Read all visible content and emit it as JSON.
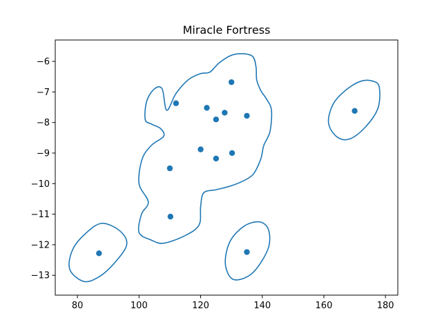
{
  "chart_data": {
    "type": "scatter",
    "title": "Miracle Fortress",
    "xlabel": "",
    "ylabel": "",
    "xlim": [
      72.8,
      184.0
    ],
    "ylim": [
      -13.65,
      -5.3
    ],
    "x_ticks": [
      80,
      100,
      120,
      140,
      160,
      180
    ],
    "y_ticks": [
      -6,
      -7,
      -8,
      -9,
      -10,
      -11,
      -12,
      -13
    ],
    "x_tick_labels": [
      "80",
      "100",
      "120",
      "140",
      "160",
      "180"
    ],
    "y_tick_labels": [
      "−6",
      "−7",
      "−8",
      "−9",
      "−10",
      "−11",
      "−12",
      "−13"
    ],
    "grid": false,
    "colors": {
      "series": "#1f77b4",
      "axis": "#000000"
    },
    "points": [
      {
        "x": 87,
        "y": -12.28
      },
      {
        "x": 110,
        "y": -9.5
      },
      {
        "x": 110.2,
        "y": -11.08
      },
      {
        "x": 112,
        "y": -7.37
      },
      {
        "x": 120,
        "y": -8.88
      },
      {
        "x": 122,
        "y": -7.52
      },
      {
        "x": 125,
        "y": -7.9
      },
      {
        "x": 125,
        "y": -9.18
      },
      {
        "x": 127.8,
        "y": -7.68
      },
      {
        "x": 130,
        "y": -6.68
      },
      {
        "x": 130.2,
        "y": -9.0
      },
      {
        "x": 135,
        "y": -7.78
      },
      {
        "x": 135,
        "y": -12.24
      },
      {
        "x": 170,
        "y": -7.62
      }
    ],
    "contours": [
      {
        "name": "cluster-contour-main",
        "points": [
          [
            109,
            -7.6
          ],
          [
            112,
            -7.05
          ],
          [
            116,
            -6.6
          ],
          [
            120,
            -6.4
          ],
          [
            123,
            -6.35
          ],
          [
            126,
            -6.05
          ],
          [
            130,
            -5.8
          ],
          [
            134,
            -5.75
          ],
          [
            137,
            -5.85
          ],
          [
            138,
            -6.2
          ],
          [
            138.2,
            -6.6
          ],
          [
            139.5,
            -6.95
          ],
          [
            141.5,
            -7.25
          ],
          [
            143,
            -7.6
          ],
          [
            142.5,
            -8.3
          ],
          [
            140.5,
            -8.75
          ],
          [
            139.5,
            -9.2
          ],
          [
            137,
            -9.7
          ],
          [
            133,
            -9.95
          ],
          [
            129,
            -10.1
          ],
          [
            125,
            -10.2
          ],
          [
            121,
            -10.3
          ],
          [
            120,
            -10.75
          ],
          [
            119.5,
            -11.35
          ],
          [
            115,
            -11.7
          ],
          [
            108,
            -11.95
          ],
          [
            104,
            -11.85
          ],
          [
            100,
            -11.6
          ],
          [
            100.8,
            -11.0
          ],
          [
            103,
            -10.6
          ],
          [
            100,
            -10.0
          ],
          [
            101,
            -9.2
          ],
          [
            104,
            -8.75
          ],
          [
            108,
            -8.45
          ],
          [
            107,
            -8.2
          ],
          [
            104,
            -8.05
          ],
          [
            102,
            -7.9
          ],
          [
            102.5,
            -7.3
          ],
          [
            105,
            -6.9
          ],
          [
            107.5,
            -6.9
          ]
        ]
      },
      {
        "name": "cluster-contour-bottom-left",
        "points": [
          [
            93.8,
            -11.55
          ],
          [
            96,
            -12.0
          ],
          [
            92,
            -12.6
          ],
          [
            87,
            -13.05
          ],
          [
            82,
            -13.2
          ],
          [
            77.5,
            -12.8
          ],
          [
            78.5,
            -12.15
          ],
          [
            83,
            -11.6
          ],
          [
            88,
            -11.3
          ]
        ]
      },
      {
        "name": "cluster-contour-bottom-center",
        "points": [
          [
            142,
            -11.5
          ],
          [
            142,
            -12.1
          ],
          [
            138,
            -12.8
          ],
          [
            134,
            -13.1
          ],
          [
            130,
            -13.1
          ],
          [
            128,
            -12.6
          ],
          [
            129.5,
            -11.9
          ],
          [
            134,
            -11.4
          ],
          [
            139,
            -11.25
          ]
        ]
      },
      {
        "name": "cluster-contour-right",
        "points": [
          [
            178,
            -6.85
          ],
          [
            177.5,
            -7.55
          ],
          [
            173,
            -8.2
          ],
          [
            168,
            -8.55
          ],
          [
            164,
            -8.45
          ],
          [
            161.5,
            -8.0
          ],
          [
            163,
            -7.4
          ],
          [
            167,
            -6.95
          ],
          [
            172,
            -6.65
          ],
          [
            176,
            -6.65
          ]
        ]
      }
    ]
  }
}
